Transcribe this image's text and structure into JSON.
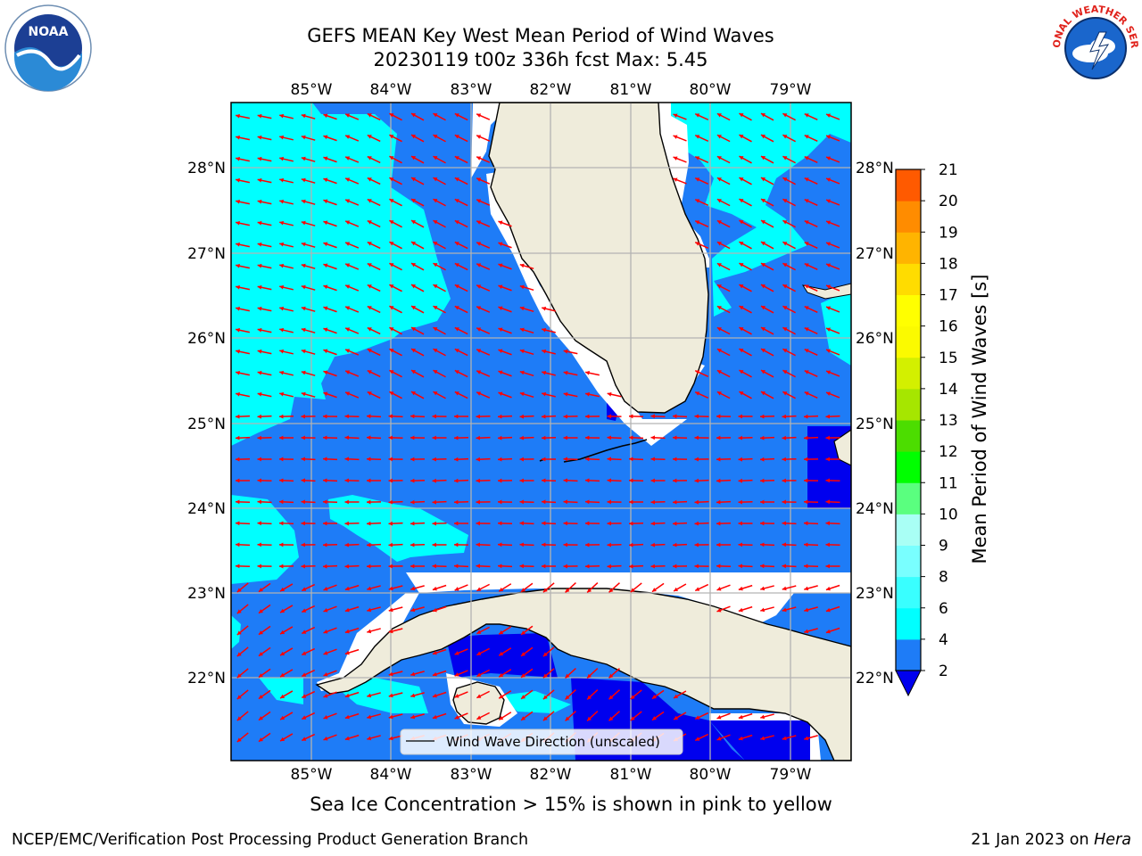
{
  "title_line1": "GEFS MEAN Key West Mean Period of Wind Waves",
  "title_line2": "20230119 t00z 336h fcst   Max: 5.45",
  "caption": "Sea Ice Concentration > 15% is shown in pink to yellow",
  "footer_left": "NCEP/EMC/Verification Post Processing Product Generation Branch",
  "footer_date": "21 Jan 2023 on ",
  "footer_machine": "Hera",
  "legend_label": "Wind Wave Direction (unscaled)",
  "colorbar_label": "Mean Period of Wind Waves [s]",
  "colorbar_ticks": [
    "2",
    "4",
    "6",
    "8",
    "9",
    "10",
    "11",
    "12",
    "13",
    "14",
    "15",
    "16",
    "17",
    "18",
    "19",
    "20",
    "21"
  ],
  "colorbar_colors": [
    "#1e7cf7",
    "#00ffff",
    "#39ffff",
    "#79ffff",
    "#a9fff5",
    "#5aff7f",
    "#00ff00",
    "#4cdd00",
    "#a6e600",
    "#d3f000",
    "#fbfa00",
    "#ffff00",
    "#ffdc00",
    "#ffb400",
    "#ff8c00",
    "#ff5a00",
    "#ff2a00",
    "#ff0000"
  ],
  "lon_ticks": [
    "85°W",
    "84°W",
    "83°W",
    "82°W",
    "81°W",
    "80°W",
    "79°W"
  ],
  "lat_ticks": [
    "28°N",
    "27°N",
    "26°N",
    "25°N",
    "24°N",
    "23°N",
    "22°N"
  ],
  "logos": {
    "left": "NOAA",
    "right": "NATIONAL WEATHER SERVICE"
  },
  "colors": {
    "land": "#efecdb",
    "shallow": "#00ffff",
    "mid": "#1e7cf7",
    "low": "#0000ee",
    "arrow": "#ff0000",
    "grid": "#b3b3b3"
  }
}
